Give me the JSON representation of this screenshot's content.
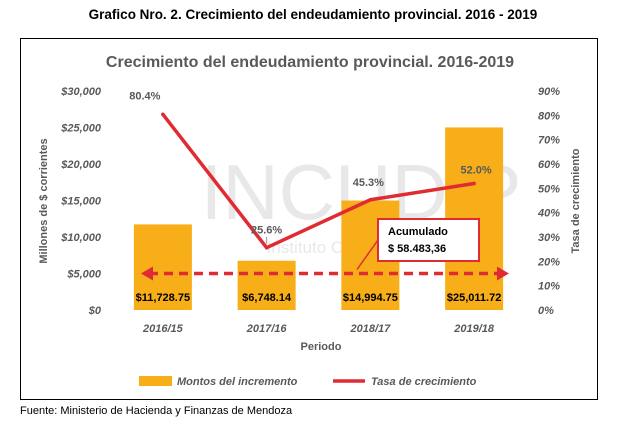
{
  "caption": "Grafico Nro. 2. Crecimiento del endeudamiento provincial. 2016 - 2019",
  "source": "Fuente: Ministerio de Hacienda y Finanzas de Mendoza",
  "watermark": {
    "main": "INCUDIP",
    "sub": "Instituto Cuyano de Desarrollo"
  },
  "colors": {
    "bars": "#F7AE18",
    "line": "#E02B33",
    "accumulated": "#E02B33",
    "text": "#595959"
  },
  "chart_data": {
    "type": "bar",
    "title": "Crecimiento del endeudamiento provincial. 2016-2019",
    "xlabel": "Periodo",
    "ylabel": "Millones de $ corrientes",
    "y2label": "Tasa de crecimiento",
    "categories": [
      "2016/15",
      "2017/16",
      "2018/17",
      "2019/18"
    ],
    "ylim": [
      0,
      30000
    ],
    "y2lim": [
      0,
      90
    ],
    "yticks": [
      "$0",
      "$5,000",
      "$10,000",
      "$15,000",
      "$20,000",
      "$25,000",
      "$30,000"
    ],
    "y2ticks": [
      "0%",
      "10%",
      "20%",
      "30%",
      "40%",
      "50%",
      "60%",
      "70%",
      "80%",
      "90%"
    ],
    "series": [
      {
        "name": "Montos del incremento",
        "kind": "bar",
        "axis": "left",
        "values": [
          11728.75,
          6748.14,
          14994.75,
          25011.72
        ],
        "labels": [
          "$11,728.75",
          "$6,748.14",
          "$14,994.75",
          "$25,011.72"
        ]
      },
      {
        "name": "Tasa de crecimiento",
        "kind": "line",
        "axis": "right",
        "values": [
          80.4,
          25.6,
          45.3,
          52.0
        ],
        "labels": [
          "80.4%",
          "25.6%",
          "45.3%",
          "52.0%"
        ]
      }
    ],
    "accumulated": {
      "label": "Acumulado",
      "value_text": "$ 58.483,36",
      "value": 15.0,
      "axis": "right"
    },
    "legend": "bottom",
    "grid": false
  }
}
